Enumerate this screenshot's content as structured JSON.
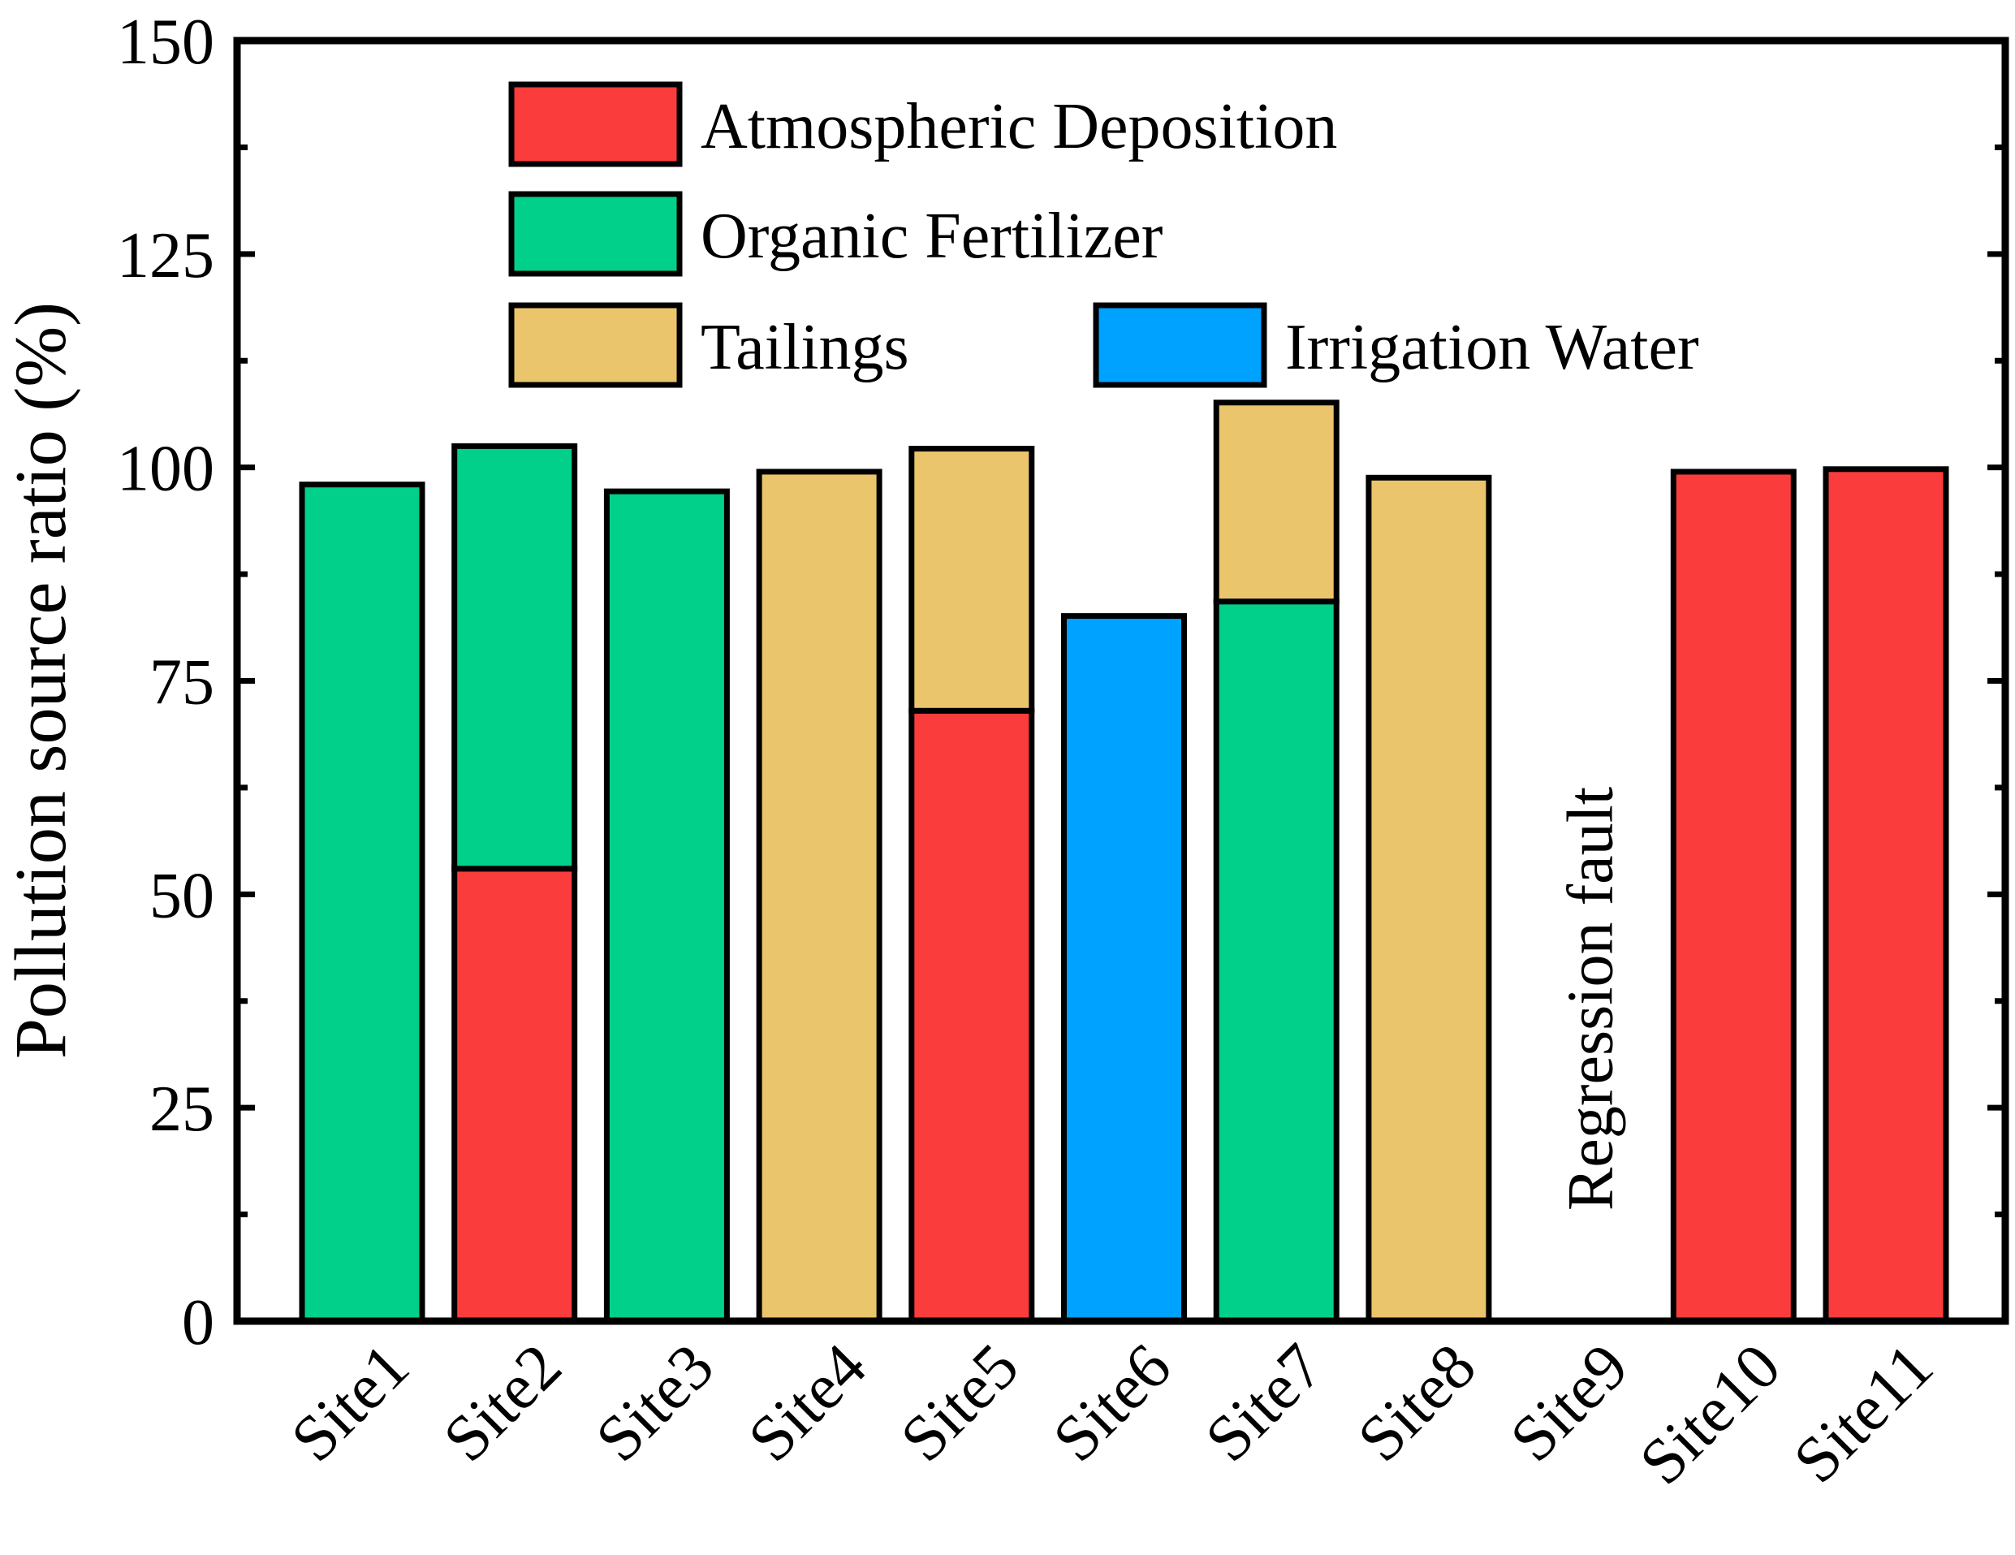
{
  "chart_data": {
    "type": "bar",
    "stacked": true,
    "title": "",
    "xlabel": "",
    "ylabel": "Pollution source ratio (%)",
    "ylim": [
      0,
      150
    ],
    "yticks": [
      0,
      25,
      50,
      75,
      100,
      125,
      150
    ],
    "categories": [
      "Site1",
      "Site2",
      "Site3",
      "Site4",
      "Site5",
      "Site6",
      "Site7",
      "Site8",
      "Site9",
      "Site10",
      "Site11"
    ],
    "series": [
      {
        "name": "Atmospheric Deposition",
        "color": "#FA3C3C",
        "values": [
          0,
          53,
          0,
          0,
          71.5,
          0,
          0,
          0,
          0,
          99.5,
          99.8
        ]
      },
      {
        "name": "Organic Fertilizer",
        "color": "#00D08A",
        "values": [
          98,
          49.5,
          97.2,
          0,
          0,
          0,
          84.3,
          0,
          0,
          0,
          0
        ]
      },
      {
        "name": "Tailings",
        "color": "#EBC56B",
        "values": [
          0,
          0,
          0,
          99.5,
          30.7,
          0,
          23.3,
          98.8,
          0,
          0,
          0
        ]
      },
      {
        "name": "Irrigation Water",
        "color": "#00A2FF",
        "values": [
          0,
          0,
          0,
          0,
          0,
          82.6,
          0,
          0,
          0,
          0,
          0
        ]
      }
    ],
    "annotations": [
      {
        "text": "Regression fault",
        "category": "Site9"
      }
    ],
    "legend_position": "top"
  }
}
